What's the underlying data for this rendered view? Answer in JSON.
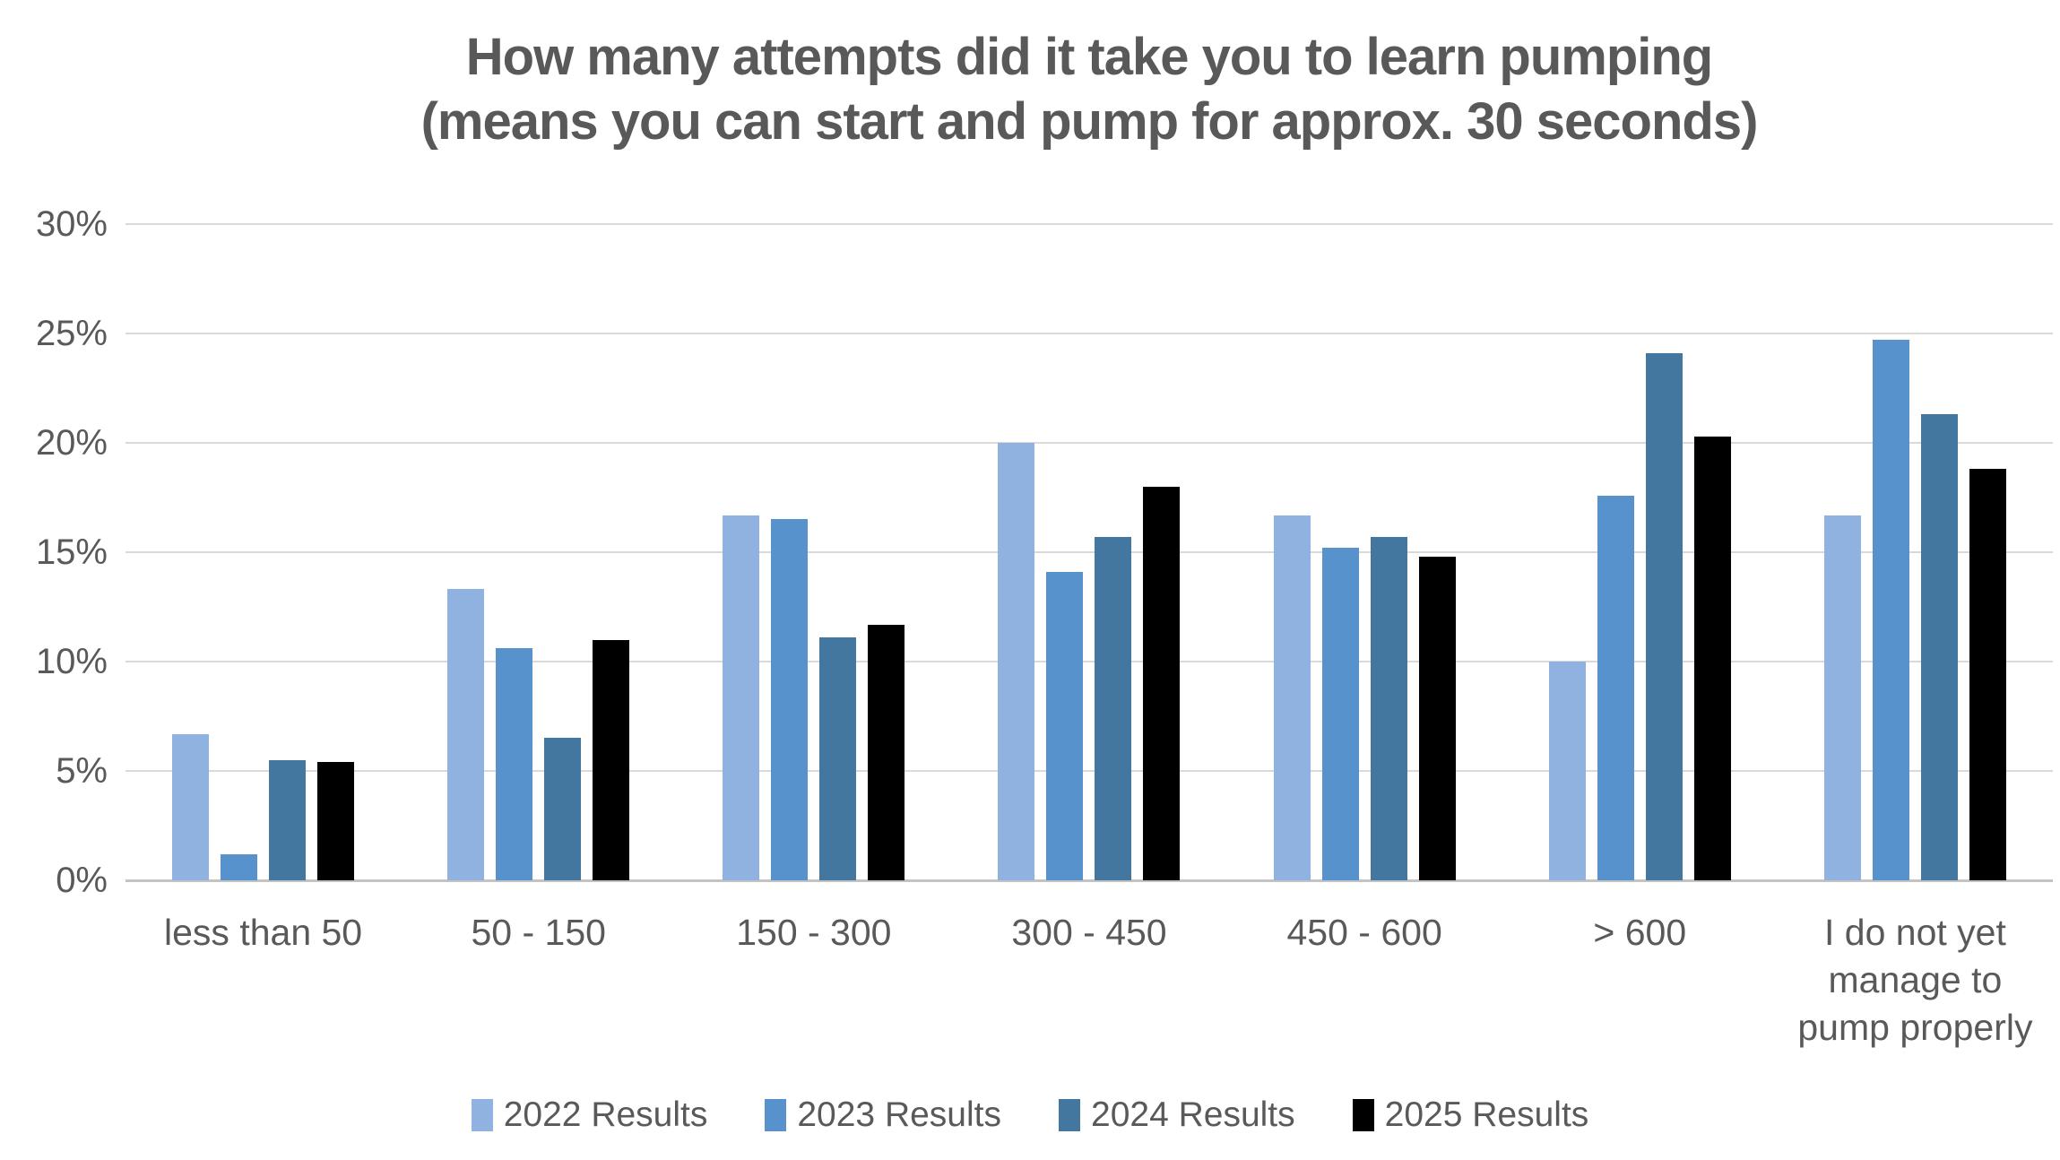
{
  "chart_data": {
    "type": "bar",
    "title_line1": "How many attempts did it take you to learn pumping",
    "title_line2": "(means you can start and pump for approx. 30 seconds)",
    "categories": [
      "less than 50",
      "50 - 150",
      "150 - 300",
      "300 - 450",
      "450 - 600",
      "> 600",
      "I do not yet manage to pump properly"
    ],
    "series": [
      {
        "name": "2022 Results",
        "color": "#8FB2E0",
        "values": [
          6.7,
          13.3,
          16.7,
          20.0,
          16.7,
          10.0,
          16.7
        ]
      },
      {
        "name": "2023 Results",
        "color": "#5792CC",
        "values": [
          1.2,
          10.6,
          16.5,
          14.1,
          15.2,
          17.6,
          24.7
        ]
      },
      {
        "name": "2024 Results",
        "color": "#44779F",
        "values": [
          5.5,
          6.5,
          11.1,
          15.7,
          15.7,
          24.1,
          21.3
        ]
      },
      {
        "name": "2025 Results",
        "color": "#000000",
        "values": [
          5.4,
          11.0,
          11.7,
          18.0,
          14.8,
          20.3,
          18.8
        ]
      }
    ],
    "ylim": [
      0,
      30
    ],
    "ytick_step": 5,
    "ytick_labels": [
      "0%",
      "5%",
      "10%",
      "15%",
      "20%",
      "25%",
      "30%"
    ],
    "grid": true,
    "legend_position": "bottom",
    "colors": {
      "text": "#595959",
      "gridline": "#D9D9D9",
      "axisline": "#C3C3C3",
      "background": "#FFFFFF"
    }
  }
}
